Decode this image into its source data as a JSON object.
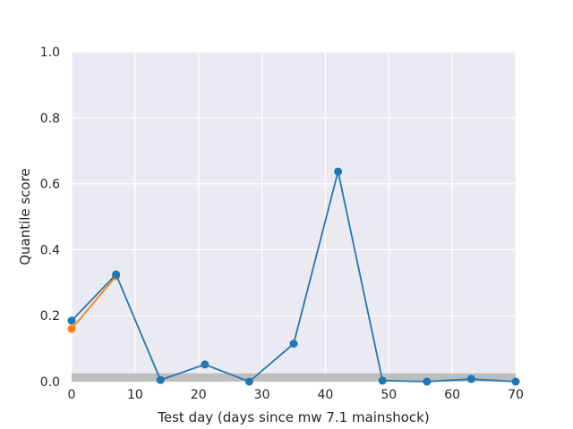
{
  "chart_data": {
    "type": "line",
    "xlabel": "Test day (days since mw 7.1 mainshock)",
    "ylabel": "Quantile score",
    "xlim": [
      0,
      70
    ],
    "ylim": [
      0.0,
      1.0
    ],
    "x_ticks": [
      "0",
      "10",
      "20",
      "30",
      "40",
      "50",
      "60",
      "70"
    ],
    "y_ticks": [
      "0.0",
      "0.2",
      "0.4",
      "0.6",
      "0.8",
      "1.0"
    ],
    "grid": true,
    "shaded_band": {
      "y_from": 0.0,
      "y_to": 0.025,
      "color": "#bdbdbd"
    },
    "series": [
      {
        "color": "#ff7f0e",
        "x": [
          0,
          7
        ],
        "y": [
          0.16,
          0.32
        ]
      },
      {
        "color": "#1f77b4",
        "x": [
          0,
          7,
          14,
          21,
          28,
          35,
          42,
          49,
          56,
          63,
          70
        ],
        "y": [
          0.185,
          0.325,
          0.005,
          0.052,
          0.0,
          0.115,
          0.637,
          0.003,
          0.0,
          0.008,
          0.0
        ]
      }
    ]
  }
}
